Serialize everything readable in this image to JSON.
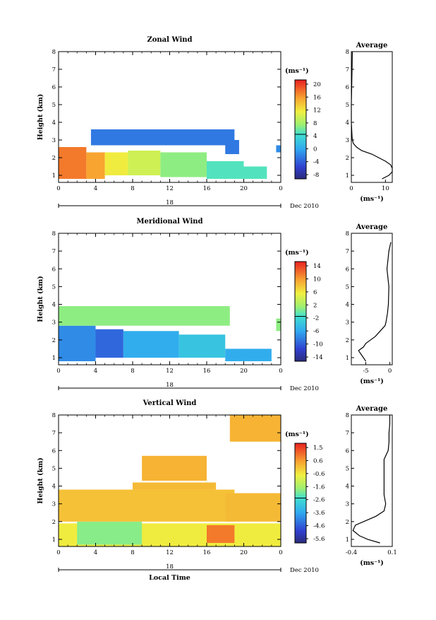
{
  "panels": [
    {
      "title": "Zonal Wind",
      "avg_title": "Average",
      "ylabel": "Height (km)",
      "unit": "(ms⁻¹)",
      "date_label": "Dec 2010",
      "day_label": "18",
      "x_ticks": [
        "0",
        "4",
        "8",
        "12",
        "16",
        "20",
        "0"
      ],
      "y_ticks": [
        "1",
        "2",
        "3",
        "4",
        "5",
        "6",
        "7",
        "8"
      ],
      "cbar_ticks": [
        "20",
        "16",
        "12",
        "8",
        "4",
        "0",
        "-4",
        "-8"
      ],
      "avg_x_ticks": [
        "0",
        "10"
      ]
    },
    {
      "title": "Meridional Wind",
      "avg_title": "Average",
      "ylabel": "Height (km)",
      "unit": "(ms⁻¹)",
      "date_label": "Dec 2010",
      "day_label": "18",
      "x_ticks": [
        "0",
        "4",
        "8",
        "12",
        "16",
        "20",
        "0"
      ],
      "y_ticks": [
        "1",
        "2",
        "3",
        "4",
        "5",
        "6",
        "7",
        "8"
      ],
      "cbar_ticks": [
        "14",
        "10",
        "6",
        "2",
        "-2",
        "-6",
        "-10",
        "-14"
      ],
      "avg_x_ticks": [
        "-5",
        "0"
      ]
    },
    {
      "title": "Vertical Wind",
      "avg_title": "Average",
      "ylabel": "Height (km)",
      "unit": "(ms⁻¹)",
      "date_label": "Dec 2010",
      "day_label": "18",
      "xlabel": "Local Time",
      "x_ticks": [
        "0",
        "4",
        "8",
        "12",
        "16",
        "20",
        "0"
      ],
      "y_ticks": [
        "1",
        "2",
        "3",
        "4",
        "5",
        "6",
        "7",
        "8"
      ],
      "cbar_ticks": [
        "1.5",
        "0.6",
        "-0.6",
        "-1.6",
        "-2.6",
        "-3.6",
        "-4.6",
        "-5.6"
      ],
      "avg_x_ticks": [
        "-0.4",
        "0.1"
      ]
    }
  ],
  "chart_data": [
    {
      "type": "heatmap",
      "title": "Zonal Wind",
      "xlabel": "",
      "ylabel": "Height (km)",
      "xlim": [
        0,
        24
      ],
      "ylim": [
        0.6,
        8
      ],
      "clim": [
        -10,
        22
      ],
      "regions": [
        {
          "x0": 0,
          "x1": 3,
          "y0": 0.8,
          "y1": 2.6,
          "v": 18
        },
        {
          "x0": 3,
          "x1": 5,
          "y0": 0.8,
          "y1": 2.3,
          "v": 16
        },
        {
          "x0": 5,
          "x1": 7.5,
          "y0": 1.0,
          "y1": 2.3,
          "v": 12
        },
        {
          "x0": 7.5,
          "x1": 11,
          "y0": 1.0,
          "y1": 2.4,
          "v": 10
        },
        {
          "x0": 11,
          "x1": 16,
          "y0": 0.9,
          "y1": 2.3,
          "v": 7
        },
        {
          "x0": 16,
          "x1": 20,
          "y0": 0.8,
          "y1": 1.8,
          "v": 5
        },
        {
          "x0": 20,
          "x1": 22.5,
          "y0": 0.8,
          "y1": 1.5,
          "v": 5
        },
        {
          "x0": 3.5,
          "x1": 19,
          "y0": 2.7,
          "y1": 3.6,
          "v": -3
        },
        {
          "x0": 18,
          "x1": 19.5,
          "y0": 2.2,
          "y1": 3.0,
          "v": -3
        },
        {
          "x0": 23.5,
          "x1": 24,
          "y0": 2.3,
          "y1": 2.7,
          "v": -2
        }
      ],
      "avg_profile": {
        "xlim": [
          0,
          12
        ],
        "height": [
          0.8,
          1.0,
          1.2,
          1.4,
          1.6,
          1.8,
          2.0,
          2.2,
          2.4,
          2.6,
          2.8,
          3.0,
          3.2,
          3.6,
          4.0,
          5.0,
          6.0,
          7.0,
          8.0
        ],
        "value": [
          9,
          11,
          12,
          12,
          11.5,
          10,
          8,
          6,
          3,
          1.5,
          0.6,
          0.3,
          0.2,
          0.1,
          0,
          0,
          0.1,
          0.2,
          0.3
        ]
      }
    },
    {
      "type": "heatmap",
      "title": "Meridional Wind",
      "xlabel": "",
      "ylabel": "Height (km)",
      "xlim": [
        0,
        24
      ],
      "ylim": [
        0.6,
        8
      ],
      "clim": [
        -16,
        16
      ],
      "regions": [
        {
          "x0": 0,
          "x1": 4,
          "y0": 0.8,
          "y1": 2.8,
          "v": -8
        },
        {
          "x0": 4,
          "x1": 7,
          "y0": 1.0,
          "y1": 2.6,
          "v": -10
        },
        {
          "x0": 7,
          "x1": 13,
          "y0": 1.0,
          "y1": 2.5,
          "v": -6
        },
        {
          "x0": 13,
          "x1": 18,
          "y0": 1.0,
          "y1": 2.3,
          "v": -4
        },
        {
          "x0": 18,
          "x1": 23,
          "y0": 0.8,
          "y1": 1.5,
          "v": -6
        },
        {
          "x0": 0,
          "x1": 18.5,
          "y0": 2.8,
          "y1": 3.9,
          "v": 1
        },
        {
          "x0": 23.5,
          "x1": 24,
          "y0": 2.5,
          "y1": 3.2,
          "v": 1
        }
      ],
      "avg_profile": {
        "xlim": [
          -8,
          0.5
        ],
        "height": [
          0.8,
          1.0,
          1.2,
          1.4,
          1.6,
          1.8,
          2.0,
          2.2,
          2.5,
          2.8,
          3.0,
          3.5,
          4.0,
          5.0,
          6.0,
          6.5,
          7.0,
          7.5
        ],
        "value": [
          -5,
          -5.5,
          -6,
          -6.5,
          -5.5,
          -5,
          -4,
          -3,
          -2,
          -1,
          -0.8,
          -0.5,
          -0.3,
          -0.2,
          -0.6,
          -0.4,
          -0.2,
          0.2
        ]
      }
    },
    {
      "type": "heatmap",
      "title": "Vertical Wind",
      "xlabel": "Local Time",
      "ylabel": "Height (km)",
      "xlim": [
        0,
        24
      ],
      "ylim": [
        0.6,
        8
      ],
      "clim": [
        -6,
        2
      ],
      "regions": [
        {
          "x0": 0,
          "x1": 24,
          "y0": 0.6,
          "y1": 1.9,
          "v": -0.5
        },
        {
          "x0": 2,
          "x1": 9,
          "y0": 0.7,
          "y1": 2.0,
          "v": -1.8
        },
        {
          "x0": 0,
          "x1": 19,
          "y0": 2.0,
          "y1": 3.8,
          "v": 0.1
        },
        {
          "x0": 8,
          "x1": 17,
          "y0": 3.8,
          "y1": 4.2,
          "v": 0.2
        },
        {
          "x0": 16,
          "x1": 19,
          "y0": 0.8,
          "y1": 1.8,
          "v": 1.0
        },
        {
          "x0": 18,
          "x1": 24,
          "y0": 2.0,
          "y1": 3.6,
          "v": 0.2
        },
        {
          "x0": 9,
          "x1": 16,
          "y0": 4.3,
          "y1": 5.7,
          "v": 0.3
        },
        {
          "x0": 18.5,
          "x1": 24,
          "y0": 6.5,
          "y1": 8.0,
          "v": 0.3
        }
      ],
      "avg_profile": {
        "xlim": [
          -0.4,
          0.1
        ],
        "height": [
          0.8,
          1.0,
          1.2,
          1.5,
          1.8,
          2.0,
          2.3,
          2.6,
          3.0,
          3.5,
          4.0,
          5.0,
          5.5,
          6.0,
          6.5,
          7.0,
          7.5,
          8.0
        ],
        "value": [
          -0.05,
          -0.2,
          -0.3,
          -0.38,
          -0.35,
          -0.25,
          -0.1,
          0.0,
          0.02,
          0.0,
          0.0,
          0.0,
          0.0,
          0.05,
          0.06,
          0.06,
          0.07,
          0.07
        ]
      }
    }
  ]
}
